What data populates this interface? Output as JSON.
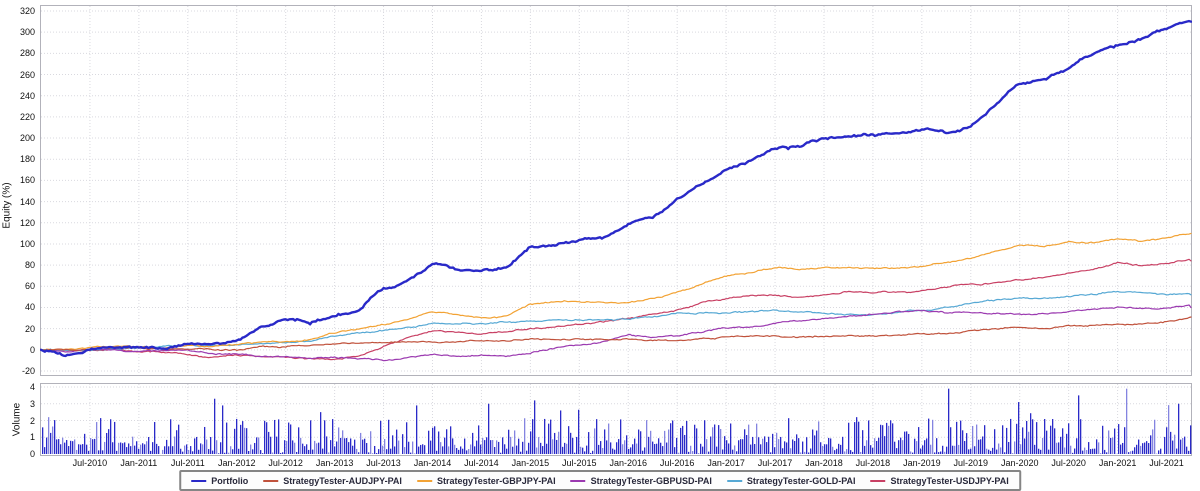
{
  "chart_data": [
    {
      "type": "line",
      "title": "",
      "ylabel": "Equity (%)",
      "ylim": [
        -20,
        320
      ],
      "ytick_step": 20,
      "grid": "dotted",
      "legend_position": "bottom-center-boxed",
      "x_start": "Jan-2010",
      "x_end": "Oct-2021",
      "x_point_interval_months": 3,
      "x_tick_labels": [
        "Jul-2010",
        "Jan-2011",
        "Jul-2011",
        "Jan-2012",
        "Jul-2012",
        "Jan-2013",
        "Jul-2013",
        "Jan-2014",
        "Jul-2014",
        "Jan-2015",
        "Jul-2015",
        "Jan-2016",
        "Jul-2016",
        "Jan-2017",
        "Jul-2017",
        "Jan-2018",
        "Jul-2018",
        "Jan-2019",
        "Jul-2019",
        "Jan-2020",
        "Jul-2020",
        "Jan-2021",
        "Jul-2021"
      ],
      "series": [
        {
          "name": "Portfolio",
          "color": "#2929c8",
          "width": 2.4,
          "values": [
            0,
            -3,
            1,
            3,
            5,
            3,
            7,
            5,
            11,
            20,
            28,
            24,
            33,
            36,
            58,
            66,
            81,
            75,
            73,
            75,
            99,
            101,
            105,
            108,
            120,
            126,
            144,
            158,
            172,
            180,
            190,
            192,
            198,
            201,
            203,
            205,
            208,
            204,
            210,
            232,
            253,
            257,
            267,
            280,
            288,
            296,
            303,
            310
          ]
        },
        {
          "name": "StrategyTester-AUDJPY-PAI",
          "color": "#c0523c",
          "width": 1.2,
          "values": [
            0,
            1,
            0,
            2,
            2,
            1,
            2,
            1,
            2,
            3,
            2,
            3,
            4,
            4,
            5,
            5,
            6,
            6,
            7,
            7,
            8,
            8,
            9,
            9,
            10,
            10,
            11,
            12,
            13,
            13,
            14,
            14,
            15,
            15,
            15,
            16,
            17,
            17,
            18,
            19,
            21,
            21,
            22,
            23,
            25,
            26,
            28,
            31
          ]
        },
        {
          "name": "StrategyTester-GBPJPY-PAI",
          "color": "#f2a234",
          "width": 1.2,
          "values": [
            0,
            1,
            2,
            3,
            4,
            3,
            5,
            4,
            5,
            7,
            8,
            10,
            16,
            20,
            24,
            28,
            35,
            33,
            32,
            33,
            45,
            46,
            47,
            46,
            45,
            48,
            55,
            63,
            71,
            74,
            79,
            78,
            79,
            80,
            79,
            78,
            80,
            84,
            89,
            95,
            101,
            100,
            104,
            103,
            106,
            104,
            107,
            110
          ]
        },
        {
          "name": "StrategyTester-GBPUSD-PAI",
          "color": "#9b3ab0",
          "width": 1.2,
          "values": [
            0,
            -1,
            1,
            0,
            -2,
            -3,
            -2,
            -4,
            -3,
            -4,
            -5,
            -6,
            -5,
            -7,
            -8,
            -6,
            -2,
            -4,
            -3,
            -4,
            -2,
            2,
            6,
            10,
            16,
            14,
            15,
            18,
            22,
            24,
            26,
            27,
            30,
            32,
            33,
            35,
            36,
            34,
            33,
            32,
            32,
            33,
            35,
            36,
            38,
            37,
            38,
            40
          ]
        },
        {
          "name": "StrategyTester-GOLD-PAI",
          "color": "#56a8d4",
          "width": 1.2,
          "values": [
            0,
            1,
            2,
            3,
            4,
            5,
            6,
            6,
            7,
            8,
            9,
            10,
            13,
            16,
            18,
            21,
            25,
            24,
            24,
            24,
            25,
            26,
            26,
            26,
            27,
            30,
            33,
            34,
            34,
            35,
            36,
            35,
            34,
            34,
            34,
            36,
            38,
            41,
            43,
            45,
            47,
            47,
            49,
            51,
            53,
            52,
            50,
            52
          ]
        },
        {
          "name": "StrategyTester-USDJPY-PAI",
          "color": "#c84064",
          "width": 1.2,
          "values": [
            0,
            -1,
            -2,
            -1,
            -3,
            -4,
            -6,
            -9,
            -7,
            -8,
            -9,
            -10,
            -9,
            -5,
            5,
            14,
            20,
            19,
            17,
            18,
            21,
            24,
            26,
            28,
            30,
            34,
            38,
            44,
            49,
            51,
            53,
            52,
            54,
            56,
            55,
            56,
            56,
            58,
            60,
            62,
            64,
            66,
            70,
            74,
            80,
            78,
            81,
            84
          ]
        }
      ]
    },
    {
      "type": "bar",
      "title": "",
      "ylabel": "Volume",
      "ylim": [
        0,
        4
      ],
      "ytick_step": 1,
      "grid": "dotted",
      "bar_color": "#2a2ac8",
      "bar_color_light": "#8484e0",
      "typical_bar_range": [
        0,
        2
      ],
      "spikes": [
        {
          "pos": 0.006,
          "h": 2.2
        },
        {
          "pos": 0.15,
          "h": 3.3
        },
        {
          "pos": 0.156,
          "h": 2.9
        },
        {
          "pos": 0.243,
          "h": 2.5
        },
        {
          "pos": 0.326,
          "h": 2.9
        },
        {
          "pos": 0.388,
          "h": 3.0
        },
        {
          "pos": 0.452,
          "h": 2.6
        },
        {
          "pos": 0.79,
          "h": 3.9
        },
        {
          "pos": 0.851,
          "h": 3.1
        },
        {
          "pos": 0.903,
          "h": 3.5
        },
        {
          "pos": 0.945,
          "h": 3.9
        },
        {
          "pos": 0.99,
          "h": 3.0
        }
      ]
    }
  ],
  "colors": {
    "background": "#ffffff",
    "plot_background": "#ffffff",
    "grid": "#d9d9df",
    "plot_border": "#b2b2ba",
    "text": "#111111",
    "legend_border": "#858585"
  }
}
